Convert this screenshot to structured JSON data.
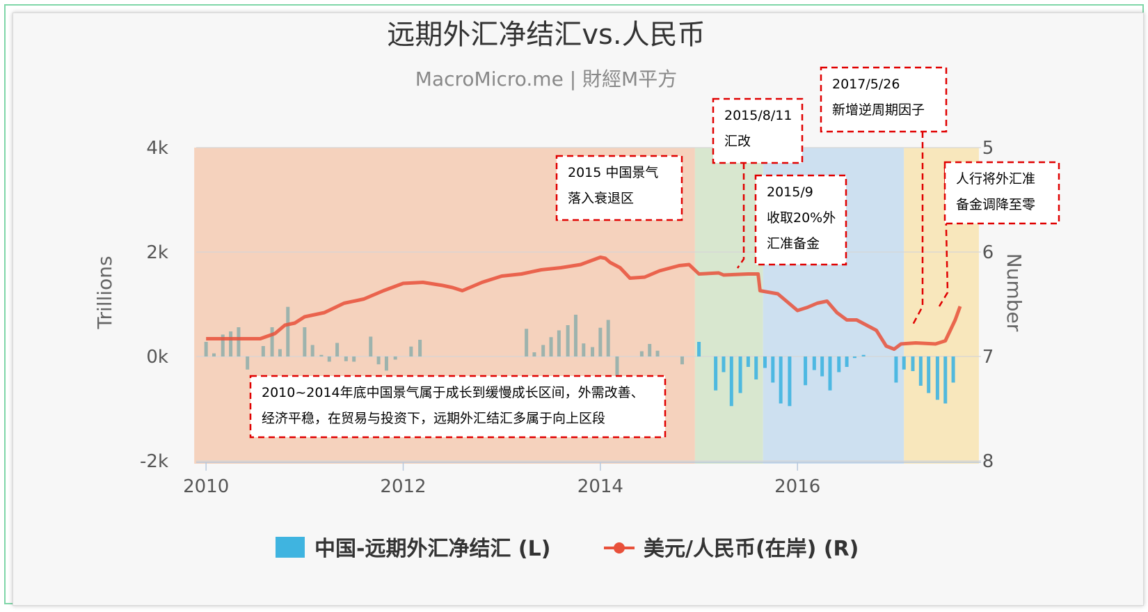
{
  "chart_data": {
    "type": "bar+line",
    "title": "远期外汇净结汇vs.人民币",
    "subtitle": "MacroMicro.me | 財經M平方",
    "ylabel_left": "Trillions",
    "ylabel_right": "Number",
    "left_axis": {
      "ticks": [
        "4k",
        "2k",
        "0k",
        "-2k"
      ],
      "range": [
        -2000,
        4000
      ]
    },
    "right_axis": {
      "ticks": [
        "5",
        "6",
        "7",
        "8"
      ],
      "range": [
        8,
        5
      ],
      "reversed": true
    },
    "x_ticks": [
      "2010",
      "2012",
      "2014",
      "2016"
    ],
    "x_range": [
      2009.9,
      2017.65
    ],
    "legend": [
      {
        "label": "中国-远期外汇净结汇 (L)",
        "color": "#3fb4e0"
      },
      {
        "label": "美元/人民币(在岸) (R)",
        "color": "#e8503a"
      }
    ],
    "bands": [
      {
        "x0": 2009.88,
        "x1": 2014.96,
        "color": "#f5d2bd"
      },
      {
        "x0": 2014.96,
        "x1": 2015.65,
        "color": "#d8e7cf"
      },
      {
        "x0": 2015.65,
        "x1": 2017.08,
        "color": "#cde0f0"
      },
      {
        "x0": 2017.08,
        "x1": 2017.84,
        "color": "#f8e7bc"
      }
    ],
    "series": [
      {
        "name": "中国-远期外汇净结汇 (L)",
        "color": "#3fb4e0",
        "x": [
          2010.0,
          2010.08,
          2010.17,
          2010.25,
          2010.33,
          2010.42,
          2010.5,
          2010.58,
          2010.67,
          2010.75,
          2010.83,
          2010.92,
          2011.0,
          2011.08,
          2011.17,
          2011.25,
          2011.33,
          2011.42,
          2011.5,
          2011.58,
          2011.67,
          2011.75,
          2011.83,
          2011.92,
          2012.0,
          2012.08,
          2012.17,
          2012.25,
          2012.33,
          2012.42,
          2012.5,
          2012.58,
          2012.67,
          2012.75,
          2012.83,
          2012.92,
          2013.0,
          2013.08,
          2013.17,
          2013.25,
          2013.33,
          2013.42,
          2013.5,
          2013.58,
          2013.67,
          2013.75,
          2013.83,
          2013.92,
          2014.0,
          2014.08,
          2014.17,
          2014.25,
          2014.33,
          2014.42,
          2014.5,
          2014.58,
          2014.67,
          2014.75,
          2014.83,
          2014.92,
          2015.0,
          2015.08,
          2015.17,
          2015.25,
          2015.33,
          2015.42,
          2015.5,
          2015.58,
          2015.67,
          2015.75,
          2015.83,
          2015.92,
          2016.0,
          2016.08,
          2016.17,
          2016.25,
          2016.33,
          2016.42,
          2016.5,
          2016.58,
          2016.67,
          2016.75,
          2016.83,
          2016.92,
          2017.0,
          2017.08,
          2017.17,
          2017.25,
          2017.33,
          2017.42,
          2017.5,
          2017.58
        ],
        "values": [
          280,
          60,
          420,
          480,
          560,
          -250,
          0,
          200,
          560,
          140,
          950,
          0,
          560,
          220,
          30,
          -100,
          260,
          -90,
          -100,
          0,
          380,
          -150,
          -270,
          -60,
          0,
          190,
          320,
          0,
          0,
          0,
          0,
          0,
          0,
          0,
          0,
          0,
          0,
          0,
          0,
          530,
          80,
          220,
          370,
          500,
          600,
          800,
          250,
          180,
          550,
          700,
          -380,
          0,
          0,
          100,
          240,
          110,
          0,
          0,
          -150,
          0,
          280,
          0,
          -650,
          -300,
          -950,
          -700,
          -200,
          -440,
          -220,
          -500,
          -900,
          -950,
          0,
          -550,
          -260,
          -380,
          -650,
          -300,
          -200,
          -30,
          30,
          0,
          0,
          0,
          -500,
          -250,
          -280,
          -560,
          -700,
          -830,
          -900,
          -500
        ],
        "values_hint": "monthly bars"
      },
      {
        "name": "美元/人民币(在岸) (R)",
        "color": "#e8503a",
        "x": [
          2010.0,
          2010.2,
          2010.4,
          2010.5,
          2010.55,
          2010.7,
          2010.8,
          2010.9,
          2011.0,
          2011.2,
          2011.4,
          2011.6,
          2011.8,
          2012.0,
          2012.2,
          2012.4,
          2012.5,
          2012.6,
          2012.8,
          2013.0,
          2013.2,
          2013.4,
          2013.5,
          2013.6,
          2013.8,
          2014.0,
          2014.05,
          2014.1,
          2014.2,
          2014.25,
          2014.3,
          2014.45,
          2014.6,
          2014.8,
          2014.9,
          2015.0,
          2015.2,
          2015.25,
          2015.5,
          2015.55,
          2015.6,
          2015.62,
          2015.8,
          2015.9,
          2016.0,
          2016.1,
          2016.2,
          2016.3,
          2016.4,
          2016.5,
          2016.6,
          2016.8,
          2016.9,
          2016.98,
          2017.05,
          2017.2,
          2017.4,
          2017.5,
          2017.6,
          2017.65
        ],
        "values": [
          6.83,
          6.83,
          6.83,
          6.83,
          6.83,
          6.78,
          6.7,
          6.68,
          6.62,
          6.58,
          6.49,
          6.45,
          6.37,
          6.3,
          6.29,
          6.32,
          6.34,
          6.37,
          6.29,
          6.23,
          6.21,
          6.17,
          6.16,
          6.15,
          6.12,
          6.05,
          6.06,
          6.1,
          6.15,
          6.2,
          6.25,
          6.24,
          6.18,
          6.13,
          6.12,
          6.21,
          6.2,
          6.22,
          6.21,
          6.21,
          6.21,
          6.37,
          6.4,
          6.48,
          6.56,
          6.53,
          6.49,
          6.47,
          6.58,
          6.65,
          6.65,
          6.75,
          6.9,
          6.93,
          6.88,
          6.87,
          6.88,
          6.85,
          6.65,
          6.52
        ]
      }
    ],
    "annotations": [
      {
        "lines": [
          "2015 中国景气",
          "落入衰退区"
        ]
      },
      {
        "lines": [
          "2015/8/11",
          "汇改"
        ]
      },
      {
        "lines": [
          "2015/9",
          "收取20%外",
          "汇准备金"
        ]
      },
      {
        "lines": [
          "2017/5/26",
          "新增逆周期因子"
        ]
      },
      {
        "lines": [
          "人行将外汇准",
          "备金调降至零"
        ]
      },
      {
        "lines": [
          "2010~2014年底中国景气属于成长到缓慢成长区间，外需改善、",
          "经济平稳，在贸易与投资下，远期外汇结汇多属于向上区段"
        ]
      }
    ]
  }
}
